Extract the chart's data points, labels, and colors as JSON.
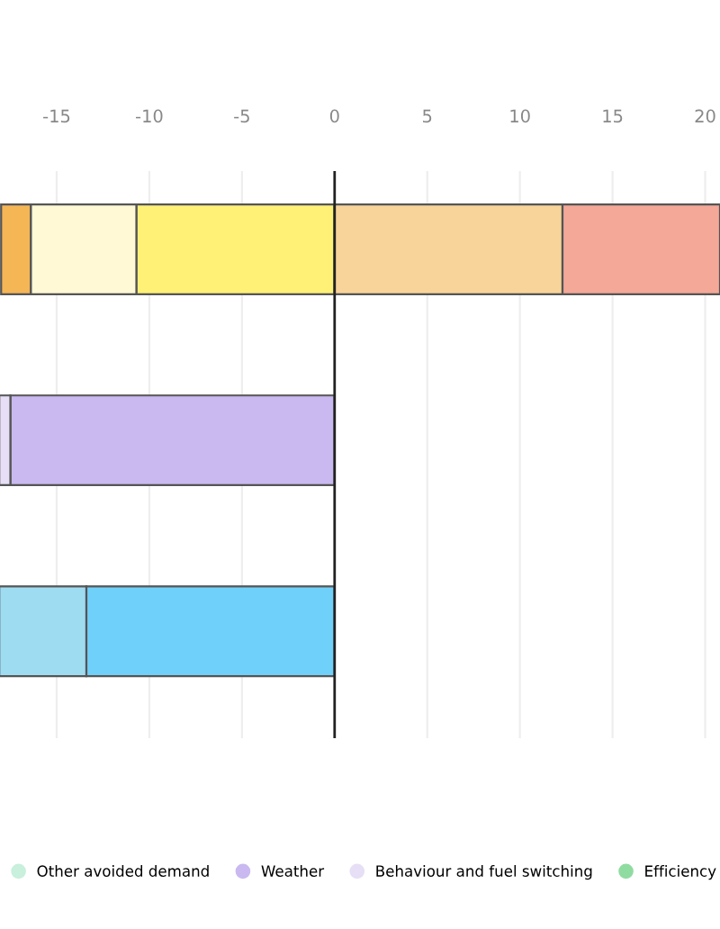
{
  "chart_data": {
    "type": "bar",
    "orientation": "horizontal",
    "stacked": true,
    "categories": [
      null,
      null,
      null
    ],
    "series": [
      {
        "name": "Other avoided demand",
        "color": "#c8f0dc",
        "values": [
          null,
          null,
          null
        ]
      },
      {
        "name": "Weather",
        "color": "#c9b9f0",
        "values": [
          null,
          -17.5,
          null
        ]
      },
      {
        "name": "Behaviour and fuel switching",
        "color": "#e6dff5",
        "values": [
          null,
          -0.6,
          null
        ]
      },
      {
        "name": "Efficiency",
        "color": "#8fdca0",
        "values": [
          null,
          null,
          null
        ]
      },
      {
        "color": "#6fd0fa",
        "values": [
          null,
          null,
          -13.4
        ]
      },
      {
        "color": "#9edcf2",
        "values": [
          null,
          null,
          -4.7
        ]
      },
      {
        "color": "#fff176",
        "values": [
          -10.7,
          null,
          null
        ]
      },
      {
        "color": "#fff9d6",
        "values": [
          -5.7,
          null,
          null
        ]
      },
      {
        "color": "#f5b656",
        "values": [
          -1.6,
          null,
          null
        ]
      },
      {
        "color": "#f8d49a",
        "values": [
          12.3,
          null,
          null
        ]
      },
      {
        "color": "#f4a898",
        "values": [
          8.5,
          null,
          null
        ]
      }
    ],
    "xlim": [
      -18.06,
      20.8
    ],
    "xticks": [
      -15,
      -10,
      -5,
      0,
      5,
      10,
      15,
      20
    ],
    "tick_labels": "x",
    "grid": "x",
    "legend": "bottom",
    "ref_lines": [
      {
        "axis": "x",
        "value": 0,
        "color": "#222222"
      }
    ]
  }
}
